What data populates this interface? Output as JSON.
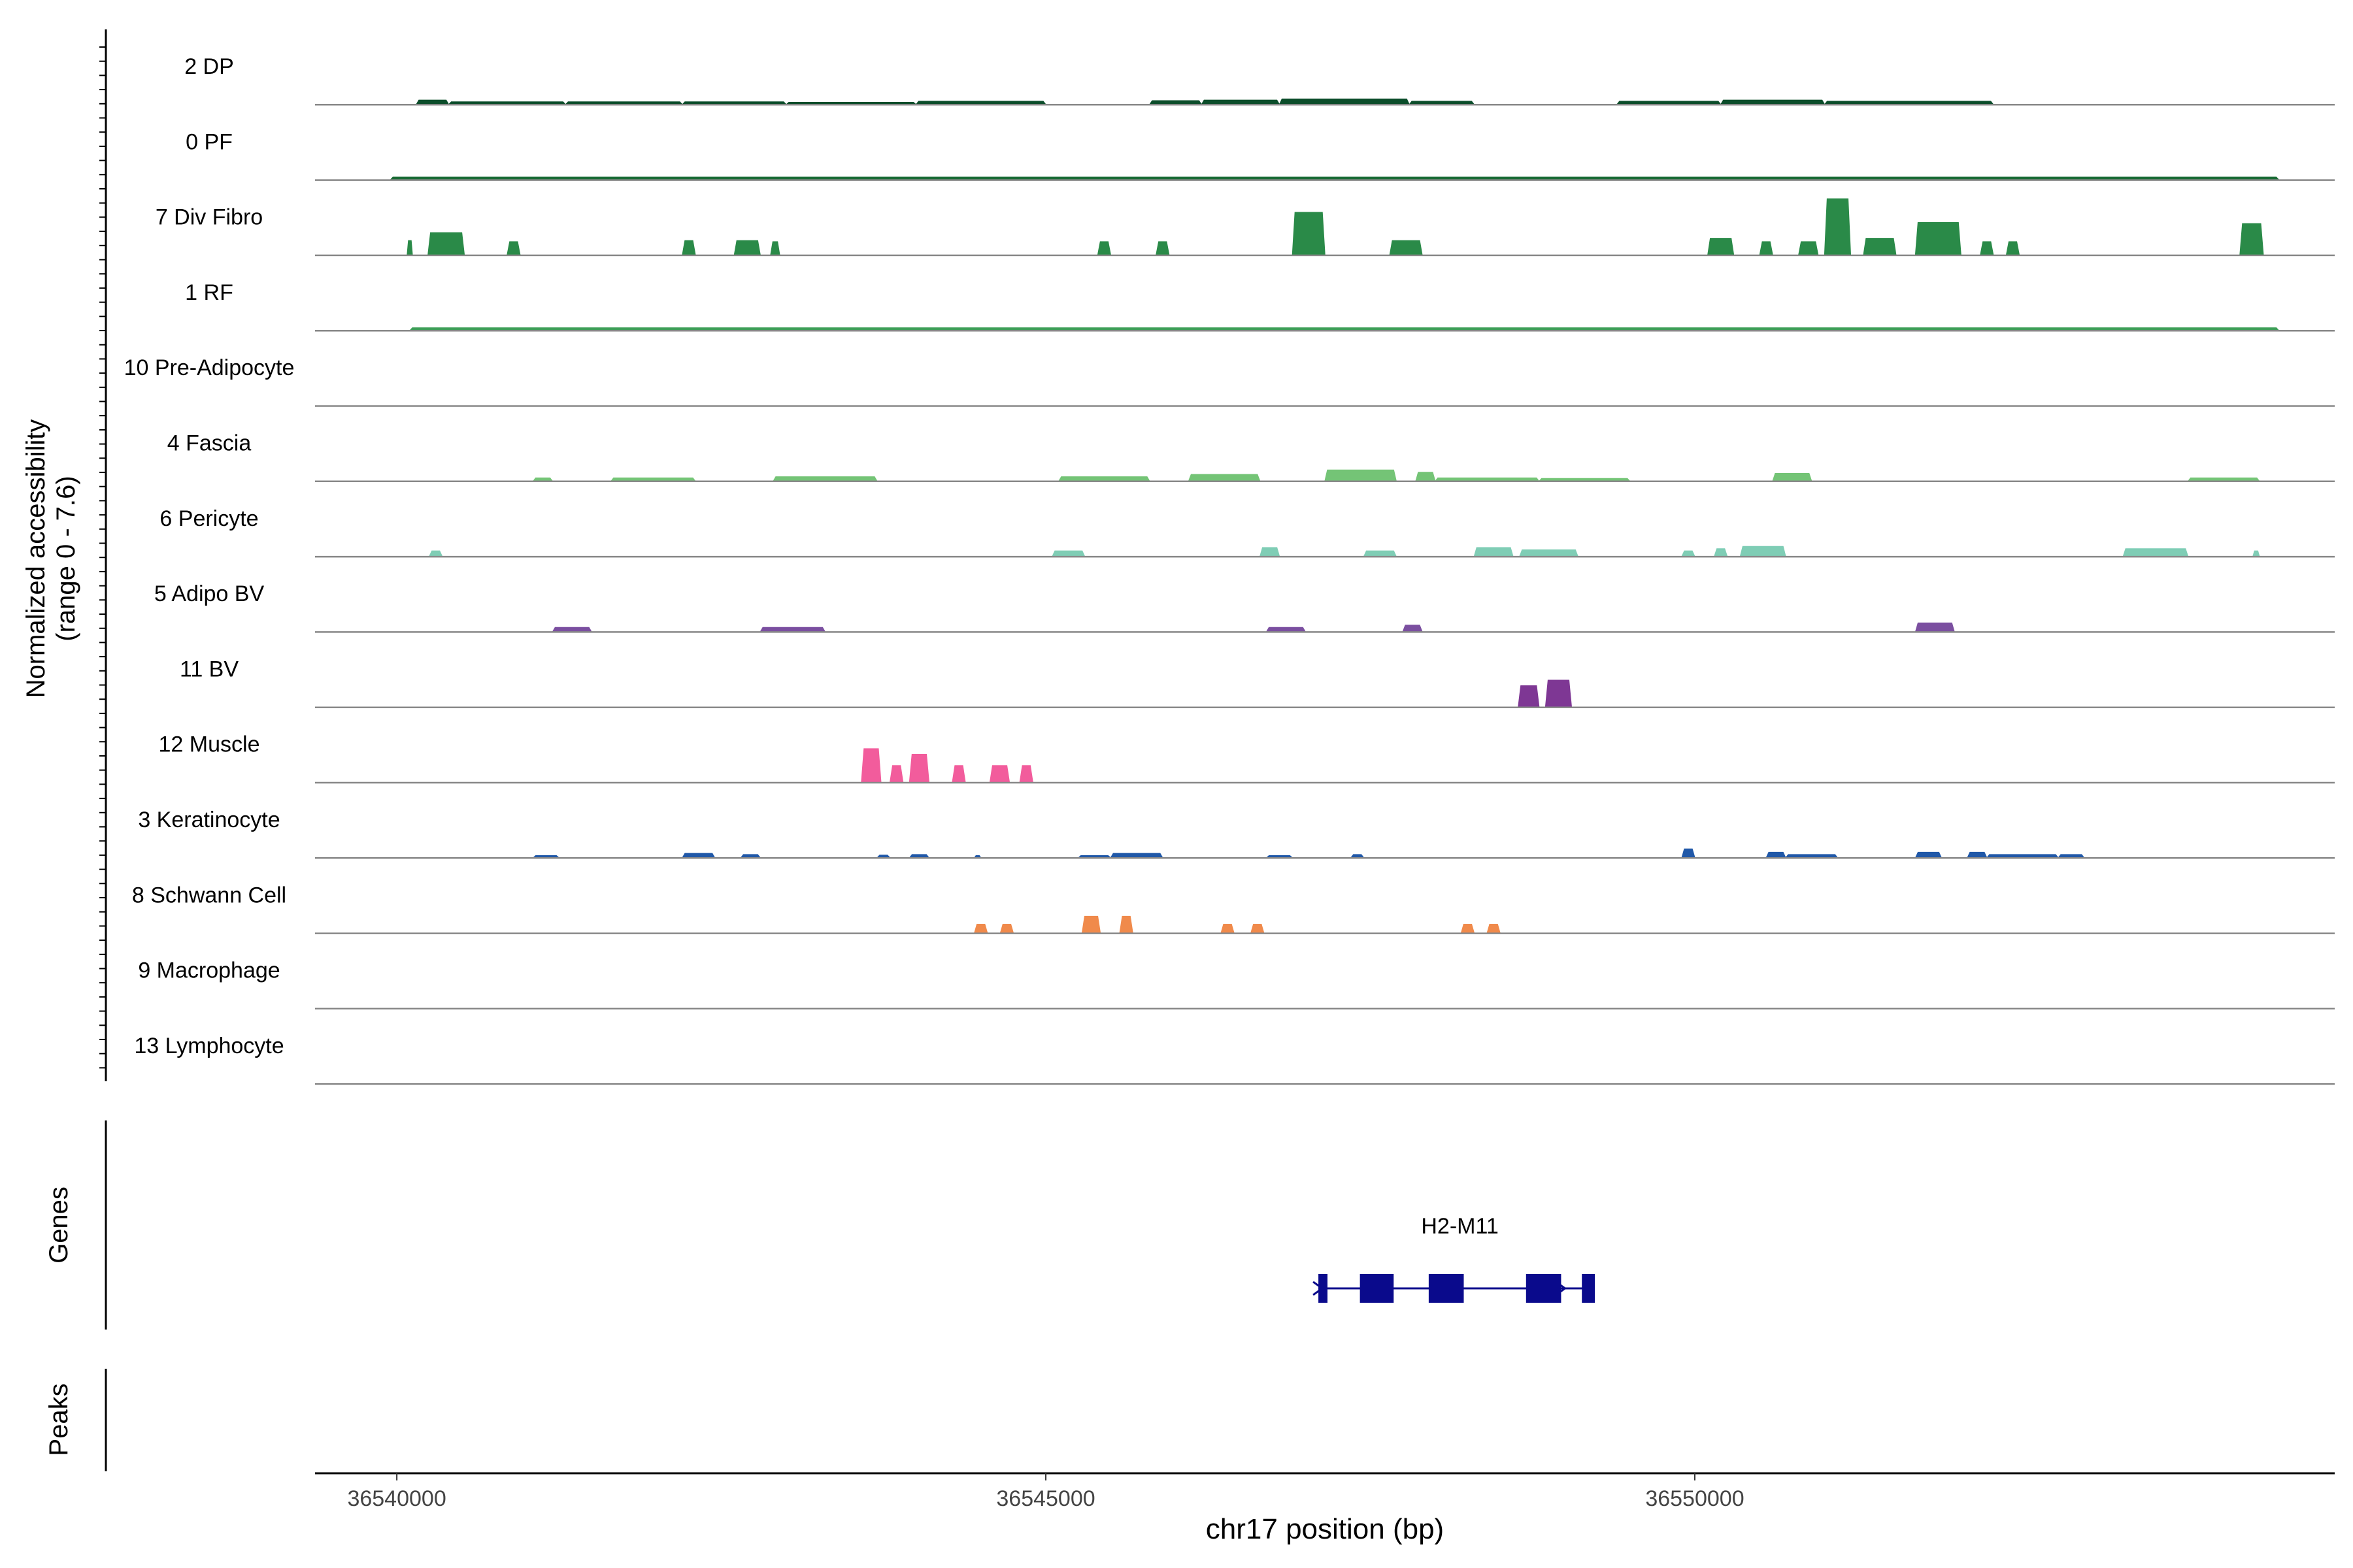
{
  "chart_data": {
    "type": "area",
    "ylabel": "Normalized accessibility",
    "ylabel_range": "(range 0 - 7.6)",
    "ylim": [
      0,
      7.6
    ],
    "xlabel": "chr17 position (bp)",
    "xlim": [
      36539370,
      36554930
    ],
    "x_ticks": [
      36540000,
      36545000,
      36550000
    ],
    "x_tick_labels": [
      "36540000",
      "36545000",
      "36550000"
    ],
    "panel_labels": {
      "genes": "Genes",
      "peaks": "Peaks"
    },
    "tracks": [
      {
        "label": "2 DP",
        "color": "#0B4D2A",
        "regions": [
          [
            36540150,
            36540400,
            0.4
          ],
          [
            36540400,
            36541300,
            0.25
          ],
          [
            36541300,
            36542200,
            0.25
          ],
          [
            36542200,
            36543000,
            0.25
          ],
          [
            36543000,
            36544000,
            0.2
          ],
          [
            36544000,
            36545000,
            0.3
          ],
          [
            36545800,
            36546200,
            0.35
          ],
          [
            36546200,
            36546800,
            0.4
          ],
          [
            36546800,
            36547800,
            0.5
          ],
          [
            36547800,
            36548300,
            0.3
          ],
          [
            36549400,
            36550200,
            0.3
          ],
          [
            36550200,
            36551000,
            0.4
          ],
          [
            36551000,
            36552300,
            0.3
          ]
        ]
      },
      {
        "label": "0 PF",
        "color": "#1A6B35",
        "regions": [
          [
            36539950,
            36554500,
            0.25
          ]
        ]
      },
      {
        "label": "7 Div Fibro",
        "color": "#2A8A48",
        "regions": [
          [
            36540080,
            36540120,
            1.3
          ],
          [
            36540240,
            36540520,
            2.0
          ],
          [
            36540850,
            36540950,
            1.2
          ],
          [
            36542200,
            36542300,
            1.3
          ],
          [
            36542600,
            36542800,
            1.3
          ],
          [
            36542880,
            36542950,
            1.2
          ],
          [
            36545400,
            36545500,
            1.2
          ],
          [
            36545850,
            36545950,
            1.2
          ],
          [
            36546900,
            36547150,
            3.8
          ],
          [
            36547650,
            36547900,
            1.3
          ],
          [
            36550100,
            36550300,
            1.5
          ],
          [
            36550500,
            36550600,
            1.2
          ],
          [
            36550800,
            36550950,
            1.2
          ],
          [
            36551000,
            36551200,
            5.0
          ],
          [
            36551300,
            36551550,
            1.5
          ],
          [
            36551700,
            36552050,
            2.9
          ],
          [
            36552200,
            36552300,
            1.2
          ],
          [
            36552400,
            36552500,
            1.2
          ],
          [
            36554200,
            36554380,
            2.8
          ]
        ]
      },
      {
        "label": "1 RF",
        "color": "#3E9E58",
        "regions": [
          [
            36540100,
            36554500,
            0.25
          ]
        ]
      },
      {
        "label": "10 Pre-Adipocyte",
        "color": "#52B06A",
        "regions": []
      },
      {
        "label": "4 Fascia",
        "color": "#74C476",
        "regions": [
          [
            36541050,
            36541200,
            0.3
          ],
          [
            36541650,
            36542300,
            0.3
          ],
          [
            36542900,
            36543700,
            0.4
          ],
          [
            36545100,
            36545800,
            0.4
          ],
          [
            36546100,
            36546650,
            0.6
          ],
          [
            36547150,
            36547700,
            1.0
          ],
          [
            36547850,
            36548000,
            0.8
          ],
          [
            36548000,
            36548800,
            0.3
          ],
          [
            36548800,
            36549500,
            0.25
          ],
          [
            36550600,
            36550900,
            0.7
          ],
          [
            36553800,
            36554350,
            0.3
          ]
        ]
      },
      {
        "label": "6 Pericyte",
        "color": "#7FCDB5",
        "regions": [
          [
            36540250,
            36540350,
            0.5
          ],
          [
            36545050,
            36545300,
            0.5
          ],
          [
            36546650,
            36546800,
            0.8
          ],
          [
            36547450,
            36547700,
            0.5
          ],
          [
            36548300,
            36548600,
            0.8
          ],
          [
            36548650,
            36549100,
            0.6
          ],
          [
            36549900,
            36550000,
            0.5
          ],
          [
            36550150,
            36550250,
            0.7
          ],
          [
            36550350,
            36550700,
            0.9
          ],
          [
            36553300,
            36553800,
            0.7
          ],
          [
            36554300,
            36554350,
            0.5
          ]
        ]
      },
      {
        "label": "5 Adipo BV",
        "color": "#7B4FA0",
        "regions": [
          [
            36541200,
            36541500,
            0.4
          ],
          [
            36542800,
            36543300,
            0.4
          ],
          [
            36546700,
            36547000,
            0.4
          ],
          [
            36547750,
            36547900,
            0.6
          ],
          [
            36551700,
            36552000,
            0.8
          ]
        ]
      },
      {
        "label": "11 BV",
        "color": "#7E3794",
        "regions": [
          [
            36548640,
            36548800,
            1.9
          ],
          [
            36548850,
            36549050,
            2.4
          ]
        ]
      },
      {
        "label": "12 Muscle",
        "color": "#F25C9C",
        "regions": [
          [
            36543580,
            36543730,
            3.0
          ],
          [
            36543800,
            36543900,
            1.5
          ],
          [
            36543950,
            36544100,
            2.5
          ],
          [
            36544280,
            36544380,
            1.5
          ],
          [
            36544570,
            36544720,
            1.5
          ],
          [
            36544800,
            36544900,
            1.5
          ]
        ]
      },
      {
        "label": "3 Keratinocyte",
        "color": "#2058A8",
        "regions": [
          [
            36541050,
            36541250,
            0.2
          ],
          [
            36542200,
            36542450,
            0.4
          ],
          [
            36542650,
            36542800,
            0.3
          ],
          [
            36543700,
            36543800,
            0.25
          ],
          [
            36543950,
            36544100,
            0.3
          ],
          [
            36544450,
            36544500,
            0.2
          ],
          [
            36545250,
            36545500,
            0.2
          ],
          [
            36545500,
            36545900,
            0.4
          ],
          [
            36546700,
            36546900,
            0.2
          ],
          [
            36547350,
            36547450,
            0.3
          ],
          [
            36549900,
            36550000,
            0.8
          ],
          [
            36550550,
            36550700,
            0.5
          ],
          [
            36550700,
            36551100,
            0.3
          ],
          [
            36551700,
            36551900,
            0.5
          ],
          [
            36552100,
            36552250,
            0.5
          ],
          [
            36552250,
            36552800,
            0.3
          ],
          [
            36552800,
            36553000,
            0.3
          ]
        ]
      },
      {
        "label": "8 Schwann Cell",
        "color": "#F08A4B",
        "regions": [
          [
            36544450,
            36544550,
            0.8
          ],
          [
            36544650,
            36544750,
            0.8
          ],
          [
            36545280,
            36545420,
            1.5
          ],
          [
            36545570,
            36545670,
            1.5
          ],
          [
            36546350,
            36546450,
            0.8
          ],
          [
            36546580,
            36546680,
            0.8
          ],
          [
            36548200,
            36548300,
            0.8
          ],
          [
            36548400,
            36548500,
            0.8
          ]
        ]
      },
      {
        "label": "9 Macrophage",
        "color": "#9B9B9B",
        "regions": []
      },
      {
        "label": "13 Lymphocyte",
        "color": "#9B9B9B",
        "regions": []
      }
    ],
    "genes": [
      {
        "name": "H2-M11",
        "start": 36547100,
        "end": 36549230,
        "strand": "+",
        "color": "#0A0A8C",
        "exons": [
          [
            36547100,
            36547170
          ],
          [
            36547420,
            36547680
          ],
          [
            36547950,
            36548220
          ],
          [
            36548700,
            36548970
          ],
          [
            36549130,
            36549230
          ]
        ]
      }
    ]
  }
}
